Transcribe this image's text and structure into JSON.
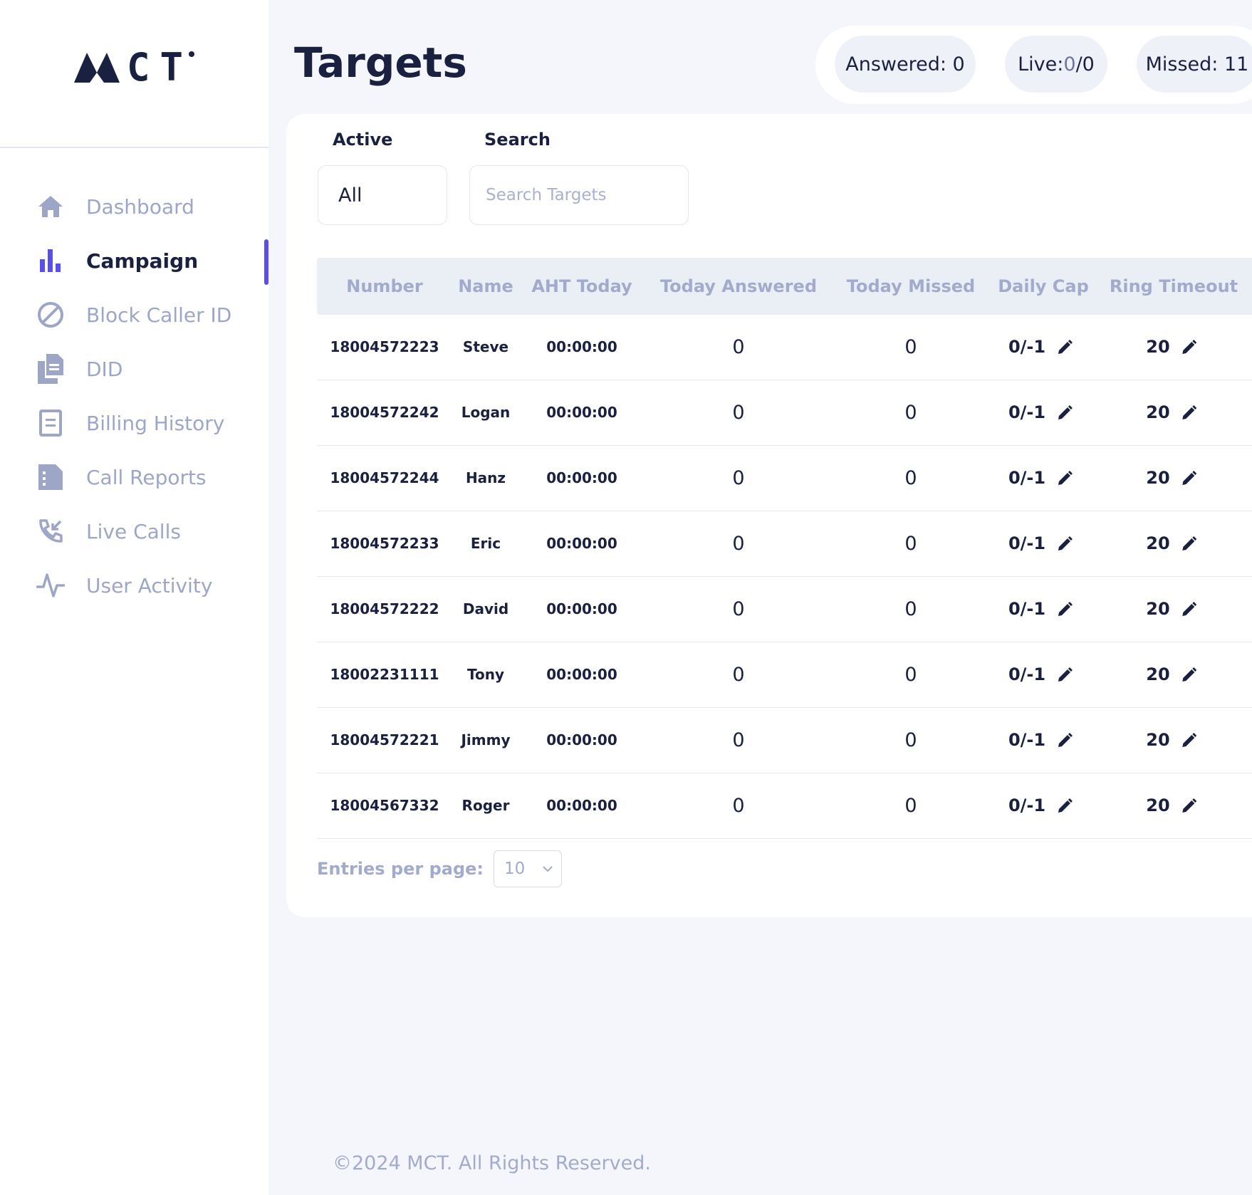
{
  "brand": {
    "logo_text": "CT"
  },
  "sidebar": {
    "items": [
      {
        "label": "Dashboard",
        "icon": "home-icon"
      },
      {
        "label": "Campaign",
        "icon": "bar-chart-icon",
        "active": true
      },
      {
        "label": "Block Caller ID",
        "icon": "block-icon"
      },
      {
        "label": "DID",
        "icon": "documents-icon"
      },
      {
        "label": "Billing History",
        "icon": "receipt-icon"
      },
      {
        "label": "Call Reports",
        "icon": "report-icon"
      },
      {
        "label": "Live Calls",
        "icon": "phone-incoming-icon"
      },
      {
        "label": "User Activity",
        "icon": "activity-icon"
      }
    ]
  },
  "header": {
    "title": "Targets"
  },
  "stats": {
    "answered_label": "Answered:",
    "answered_value": "0",
    "live_label": "Live:",
    "live_value": "0",
    "live_total": "/0",
    "missed_label": "Missed:",
    "missed_value": "11"
  },
  "filters": {
    "active_label": "Active",
    "active_value": "All",
    "search_label": "Search",
    "search_placeholder": "Search Targets"
  },
  "table": {
    "columns": [
      "Number",
      "Name",
      "AHT Today",
      "Today Answered",
      "Today Missed",
      "Daily Cap",
      "Ring Timeout"
    ],
    "rows": [
      {
        "number": "18004572223",
        "name": "Steve",
        "aht": "00:00:00",
        "answered": "0",
        "missed": "0",
        "cap": "0/-1",
        "timeout": "20"
      },
      {
        "number": "18004572242",
        "name": "Logan",
        "aht": "00:00:00",
        "answered": "0",
        "missed": "0",
        "cap": "0/-1",
        "timeout": "20"
      },
      {
        "number": "18004572244",
        "name": "Hanz",
        "aht": "00:00:00",
        "answered": "0",
        "missed": "0",
        "cap": "0/-1",
        "timeout": "20"
      },
      {
        "number": "18004572233",
        "name": "Eric",
        "aht": "00:00:00",
        "answered": "0",
        "missed": "0",
        "cap": "0/-1",
        "timeout": "20"
      },
      {
        "number": "18004572222",
        "name": "David",
        "aht": "00:00:00",
        "answered": "0",
        "missed": "0",
        "cap": "0/-1",
        "timeout": "20"
      },
      {
        "number": "18002231111",
        "name": "Tony",
        "aht": "00:00:00",
        "answered": "0",
        "missed": "0",
        "cap": "0/-1",
        "timeout": "20"
      },
      {
        "number": "18004572221",
        "name": "Jimmy",
        "aht": "00:00:00",
        "answered": "0",
        "missed": "0",
        "cap": "0/-1",
        "timeout": "20"
      },
      {
        "number": "18004567332",
        "name": "Roger",
        "aht": "00:00:00",
        "answered": "0",
        "missed": "0",
        "cap": "0/-1",
        "timeout": "20"
      }
    ]
  },
  "pagination": {
    "entries_label": "Entries per page:",
    "entries_value": "10"
  },
  "footer": {
    "text": "©2024 MCT. All Rights Reserved."
  },
  "colors": {
    "accent": "#5b4fe9",
    "text_dark": "#1a2040",
    "muted": "#9ea6c8",
    "background": "#f4f6fb"
  }
}
